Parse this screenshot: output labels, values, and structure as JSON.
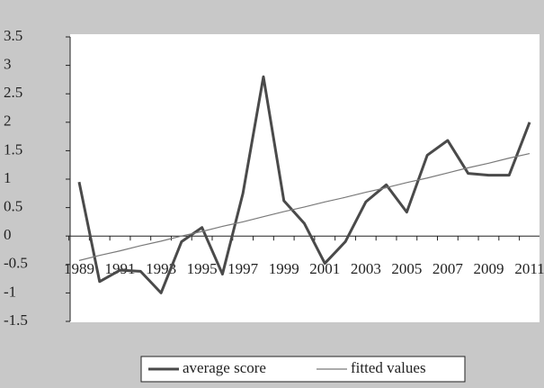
{
  "chart_data": {
    "type": "line",
    "categories": [
      "1989",
      null,
      "1991",
      null,
      "1993",
      null,
      "1995",
      null,
      "1997",
      null,
      "1999",
      null,
      "2001",
      null,
      "2003",
      null,
      "2005",
      null,
      "2007",
      null,
      "2009",
      null,
      "2011"
    ],
    "series": [
      {
        "name": "average score",
        "color": "#4a4a4a",
        "values": [
          0.95,
          -0.8,
          -0.6,
          -0.62,
          -1.0,
          -0.1,
          0.15,
          -0.67,
          0.75,
          2.8,
          0.62,
          0.22,
          -0.48,
          -0.1,
          0.6,
          0.9,
          0.42,
          1.42,
          1.68,
          1.1,
          1.07,
          1.07,
          2.0
        ]
      },
      {
        "name": "fitted values",
        "color": "#7a7a7a",
        "values": [
          -0.43,
          -0.34,
          -0.26,
          -0.17,
          -0.09,
          0.0,
          0.08,
          0.17,
          0.25,
          0.34,
          0.43,
          0.51,
          0.6,
          0.68,
          0.77,
          0.85,
          0.94,
          1.02,
          1.11,
          1.2,
          1.28,
          1.37,
          1.45
        ]
      }
    ],
    "ylim": [
      -1.5,
      3.5
    ],
    "yticks": [
      3.5,
      3,
      2.5,
      2,
      1.5,
      1,
      0.5,
      0,
      -0.5,
      -1,
      -1.5
    ]
  }
}
